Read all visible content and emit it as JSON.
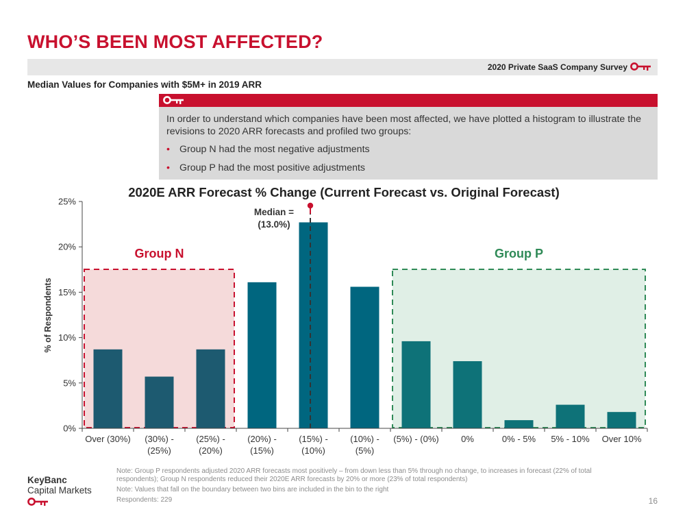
{
  "header": {
    "title": "WHO’S BEEN MOST AFFECTED?",
    "survey_label": "2020 Private SaaS Company Survey",
    "subtitle": "Median Values for Companies with $5M+ in 2019 ARR"
  },
  "callout": {
    "text": "In order to understand which companies have been most affected, we have plotted a histogram to illustrate the revisions to 2020 ARR forecasts and profiled two groups:",
    "bullets": [
      "Group N had the most negative adjustments",
      "Group P had the most positive adjustments"
    ]
  },
  "chart_data": {
    "type": "bar",
    "title": "2020E ARR Forecast % Change (Current Forecast vs. Original Forecast)",
    "xlabel": "",
    "ylabel": "% of Respondents",
    "ylim": [
      0,
      25
    ],
    "yticks": [
      "0%",
      "5%",
      "10%",
      "15%",
      "20%",
      "25%"
    ],
    "categories": [
      "Over (30%)",
      "(30%) - (25%)",
      "(25%) - (20%)",
      "(20%) - (15%)",
      "(15%) - (10%)",
      "(10%) - (5%)",
      "(5%) - (0%)",
      "0%",
      "0% - 5%",
      "5% - 10%",
      "Over 10%"
    ],
    "values": [
      8.7,
      5.7,
      8.7,
      16.1,
      22.7,
      15.6,
      9.6,
      7.4,
      0.9,
      2.6,
      1.8
    ],
    "bar_colors": [
      "#1d5a70",
      "#1d5a70",
      "#1d5a70",
      "#00667f",
      "#00667f",
      "#00667f",
      "#0e7278",
      "#0e7278",
      "#0e7278",
      "#0e7278",
      "#0e7278"
    ],
    "grid": false,
    "annotations": {
      "median_label": [
        "Median =",
        "(13.0%)"
      ],
      "group_n": {
        "label": "Group N",
        "first_category": 0,
        "last_category": 2,
        "color": "#c8102e",
        "fill": "#f5dada"
      },
      "group_p": {
        "label": "Group P",
        "first_category": 6,
        "last_category": 10,
        "color": "#2f8a57",
        "fill": "#e0efe6"
      }
    }
  },
  "footer": {
    "notes": [
      "Note: Group P respondents adjusted 2020 ARR forecasts most positively –  from down less than 5% through no change, to increases in forecast (22% of total respondents); Group N respondents reduced their 2020E ARR forecasts by 20% or more (23% of total respondents)",
      "Note: Values that fall on the boundary between two bins are included in the bin to the right",
      "Respondents: 229"
    ],
    "brand_line1": "KeyBanc",
    "brand_line2": "Capital Markets",
    "page_number": "16"
  },
  "colors": {
    "brand_red": "#c8102e",
    "group_n_red": "#c8102e",
    "group_p_green": "#2f8a57",
    "axis": "#444444"
  },
  "icons": {
    "key_logo": "key-icon"
  }
}
